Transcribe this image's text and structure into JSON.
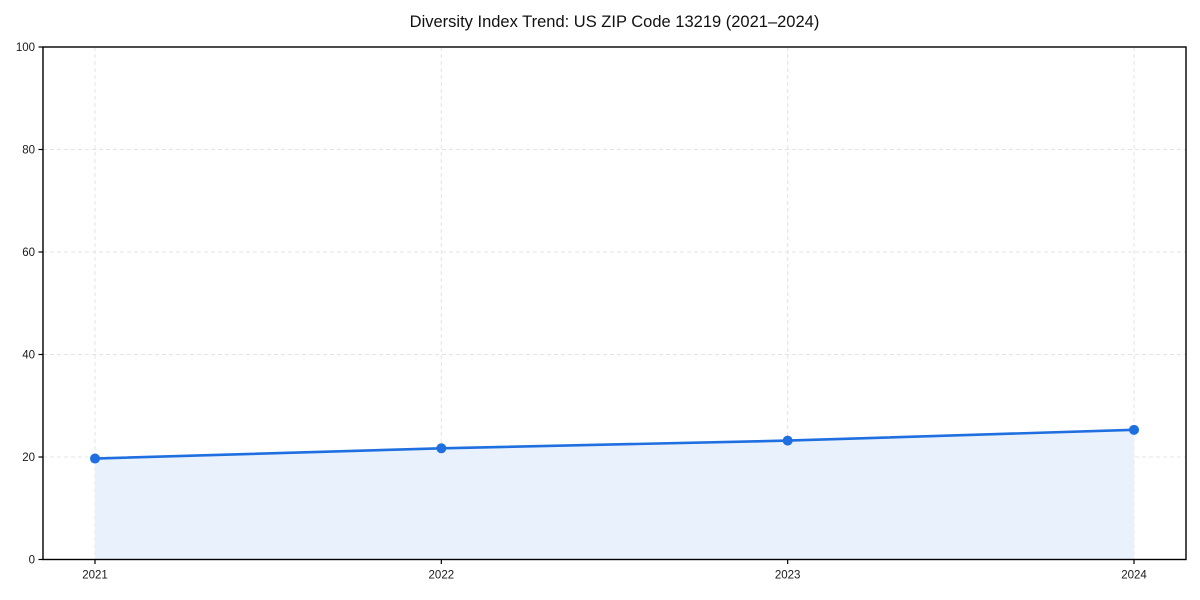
{
  "page": {
    "background": "#ffffff"
  },
  "chart_data": {
    "type": "line",
    "title": "Diversity Index Trend: US ZIP Code 13219 (2021–2024)",
    "categories": [
      "2021",
      "2022",
      "2023",
      "2024"
    ],
    "x": [
      2021,
      2022,
      2023,
      2024
    ],
    "series": [
      {
        "name": "Diversity Index",
        "values": [
          19.7,
          21.7,
          23.2,
          25.3
        ]
      }
    ],
    "xlabel": "",
    "ylabel": "",
    "ylim": [
      0,
      100
    ],
    "yticks": [
      0,
      20,
      40,
      60,
      80,
      100
    ],
    "grid": true,
    "grid_style": "dashed",
    "legend": "none",
    "area_fill": true,
    "marker": "circle",
    "colors": {
      "line": "#1f6fe0",
      "marker": "#1f6fe0",
      "fill": "#e9f1fc",
      "grid": "#e4e4e4",
      "axis": "#000000",
      "tick_label": "#1a1a1a",
      "title": "#111111"
    }
  }
}
